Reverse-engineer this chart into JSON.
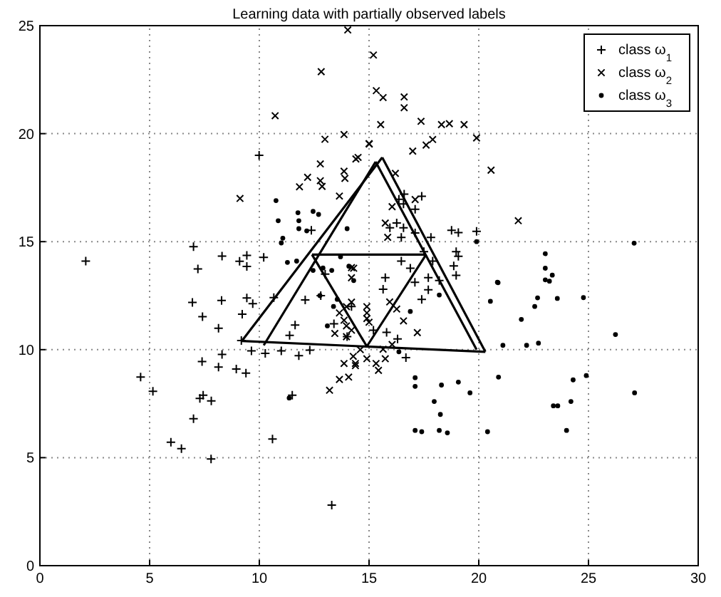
{
  "chart_data": {
    "type": "scatter",
    "title": "Learning data with partially observed labels",
    "xlim": [
      0,
      30
    ],
    "ylim": [
      0,
      25
    ],
    "xticks": [
      0,
      5,
      10,
      15,
      20,
      25,
      30
    ],
    "yticks": [
      0,
      5,
      10,
      15,
      20,
      25
    ],
    "grid": true,
    "legend": "top right",
    "series": [
      {
        "name": "class ω$_{1}$",
        "color": "#000000",
        "marker": "plus",
        "x": [
          6.95,
          8.28,
          7.41,
          9.22,
          9.43,
          9.7,
          8.14,
          10.66,
          12.09,
          11.63,
          11.38,
          9.18,
          9.64,
          10.27,
          11.0,
          11.8,
          12.3,
          8.3,
          7.39,
          8.14,
          8.95,
          9.39,
          4.59,
          5.15,
          7.44,
          7.29,
          7.81,
          7.0,
          11.5,
          5.97,
          6.45,
          7.8,
          10.6,
          13.3,
          9.99,
          2.09,
          7.0,
          7.2,
          8.3,
          9.1,
          9.43,
          9.43,
          10.2,
          12.37,
          16.6,
          17.4,
          16.36,
          16.57,
          17.1,
          16.26,
          16.57,
          15.95,
          16.47,
          17.1,
          17.82,
          18.76,
          19.07,
          19.9,
          18.97,
          19.07,
          16.47,
          16.88,
          17.5,
          17.9,
          15.74,
          17.7,
          18.97,
          18.86,
          17.09,
          17.7,
          17.4,
          18.2,
          16.68,
          15.64,
          15.8,
          16.3,
          15.2,
          13.4,
          14.0,
          12.8,
          13.0,
          14.2
        ],
        "values": [
          12.19,
          12.28,
          11.53,
          11.64,
          12.39,
          12.13,
          10.99,
          12.41,
          12.3,
          11.14,
          10.66,
          10.42,
          9.94,
          9.83,
          9.94,
          9.72,
          9.98,
          9.78,
          9.45,
          9.19,
          9.1,
          8.91,
          8.73,
          8.07,
          7.89,
          7.74,
          7.63,
          6.8,
          7.89,
          5.71,
          5.42,
          4.94,
          5.86,
          2.8,
          19.0,
          14.1,
          14.77,
          13.74,
          14.33,
          14.09,
          14.36,
          13.85,
          14.27,
          15.53,
          17.2,
          17.1,
          16.96,
          16.75,
          16.5,
          15.86,
          15.64,
          15.64,
          15.2,
          15.4,
          15.2,
          15.53,
          15.42,
          15.48,
          14.54,
          14.32,
          14.1,
          13.77,
          14.54,
          14.1,
          13.33,
          13.33,
          13.44,
          13.88,
          13.12,
          12.77,
          12.33,
          13.2,
          9.63,
          12.8,
          10.8,
          10.5,
          10.9,
          11.2,
          10.6,
          12.5,
          13.5,
          12.0
        ]
      },
      {
        "name": "class ω$_{2}$",
        "color": "#000000",
        "marker": "cross",
        "x": [
          14.03,
          12.82,
          10.72,
          12.99,
          13.86,
          15.01,
          12.78,
          12.2,
          11.83,
          12.78,
          12.86,
          13.86,
          13.9,
          14.4,
          13.65,
          9.12,
          14.2,
          15.2,
          15.33,
          15.64,
          16.6,
          16.6,
          15.53,
          17.37,
          18.3,
          18.66,
          19.33,
          19.9,
          15.0,
          16.99,
          17.6,
          17.9,
          20.56,
          21.8,
          16.2,
          16.05,
          15.74,
          15.85,
          17.1,
          14.5,
          14.3,
          14.2,
          13.97,
          14.9,
          15.94,
          14.9,
          16.57,
          16.26,
          17.2,
          14.28,
          14.9,
          15.32,
          15.43,
          14.38,
          15.74,
          15.64,
          16.05,
          13.97,
          14.2,
          14.2,
          13.65,
          13.44,
          13.86,
          13.97,
          14.6,
          13.86,
          14.38,
          13.65,
          14.07,
          13.2,
          14.9,
          15.0
        ],
        "values": [
          24.8,
          22.87,
          20.83,
          19.74,
          19.96,
          19.52,
          18.6,
          17.98,
          17.54,
          17.82,
          17.56,
          18.26,
          17.93,
          18.83,
          17.11,
          17.0,
          13.8,
          23.64,
          21.99,
          21.67,
          21.7,
          21.2,
          20.42,
          20.57,
          20.42,
          20.46,
          20.42,
          19.8,
          19.54,
          19.19,
          19.47,
          19.73,
          18.31,
          15.97,
          18.16,
          16.62,
          15.86,
          15.2,
          16.95,
          18.9,
          13.77,
          13.33,
          11.99,
          11.99,
          12.21,
          11.44,
          11.33,
          11.88,
          10.79,
          9.69,
          9.58,
          9.36,
          9.04,
          9.36,
          9.58,
          10.02,
          10.24,
          11.1,
          10.9,
          12.2,
          11.7,
          10.75,
          11.36,
          10.6,
          10.0,
          9.36,
          9.26,
          8.62,
          8.73,
          8.12,
          11.7,
          11.27
        ]
      },
      {
        "name": "class ω$_{3}$",
        "color": "#000000",
        "marker": "circle",
        "x": [
          10.76,
          10.86,
          11.76,
          11.8,
          12.45,
          12.7,
          11.8,
          12.16,
          11.07,
          11.0,
          11.7,
          14.0,
          13.7,
          11.28,
          12.45,
          12.9,
          13.3,
          14.3,
          19.9,
          23.03,
          23.03,
          23.35,
          23.03,
          20.85,
          27.08,
          14.08,
          20.88,
          20.53,
          21.94,
          22.55,
          22.68,
          23.58,
          24.77,
          23.22,
          22.18,
          22.72,
          21.1,
          26.23,
          20.9,
          17.1,
          17.1,
          18.3,
          19.07,
          19.6,
          17.97,
          18.25,
          17.1,
          17.4,
          18.2,
          18.57,
          20.4,
          24.3,
          24.9,
          23.4,
          23.6,
          24.2,
          24.0,
          27.1,
          16.88,
          16.36,
          18.2,
          11.36,
          13.55,
          13.38,
          13.1,
          12.76
        ],
        "values": [
          16.9,
          15.97,
          16.34,
          15.97,
          16.4,
          16.26,
          15.6,
          15.5,
          15.16,
          14.94,
          14.1,
          15.6,
          14.3,
          14.04,
          13.67,
          13.78,
          13.67,
          13.2,
          15.0,
          14.44,
          13.77,
          13.45,
          13.23,
          13.12,
          14.93,
          13.86,
          13.1,
          12.24,
          11.4,
          12.0,
          12.4,
          12.37,
          12.41,
          13.17,
          10.2,
          10.3,
          10.2,
          10.7,
          8.73,
          8.7,
          8.3,
          8.36,
          8.5,
          8.0,
          7.6,
          7.0,
          6.26,
          6.2,
          6.26,
          6.15,
          6.2,
          8.6,
          8.8,
          7.4,
          7.4,
          7.6,
          6.26,
          8.0,
          11.77,
          9.9,
          12.53,
          7.76,
          12.33,
          12.0,
          11.1,
          12.5
        ]
      },
      {
        "type": "line",
        "color": "#000000",
        "x": [
          9.2,
          15.6
        ],
        "values": [
          10.4,
          18.9
        ]
      },
      {
        "type": "line",
        "color": "#000000",
        "x": [
          15.6,
          20.3
        ],
        "values": [
          18.9,
          9.9
        ]
      },
      {
        "type": "line",
        "color": "#000000",
        "x": [
          9.2,
          20.3
        ],
        "values": [
          10.4,
          9.9
        ]
      },
      {
        "type": "line",
        "color": "#000000",
        "x": [
          12.4,
          17.6
        ],
        "values": [
          14.4,
          14.4
        ]
      },
      {
        "type": "line",
        "color": "#000000",
        "x": [
          12.4,
          14.9
        ],
        "values": [
          14.4,
          10.15
        ]
      },
      {
        "type": "line",
        "color": "#000000",
        "x": [
          14.9,
          17.6
        ],
        "values": [
          10.15,
          14.4
        ]
      },
      {
        "type": "line",
        "color": "#000000",
        "x": [
          10.2,
          15.3
        ],
        "values": [
          10.2,
          18.7
        ]
      },
      {
        "type": "line",
        "color": "#000000",
        "x": [
          15.3,
          19.9
        ],
        "values": [
          18.7,
          10.0
        ]
      }
    ]
  }
}
